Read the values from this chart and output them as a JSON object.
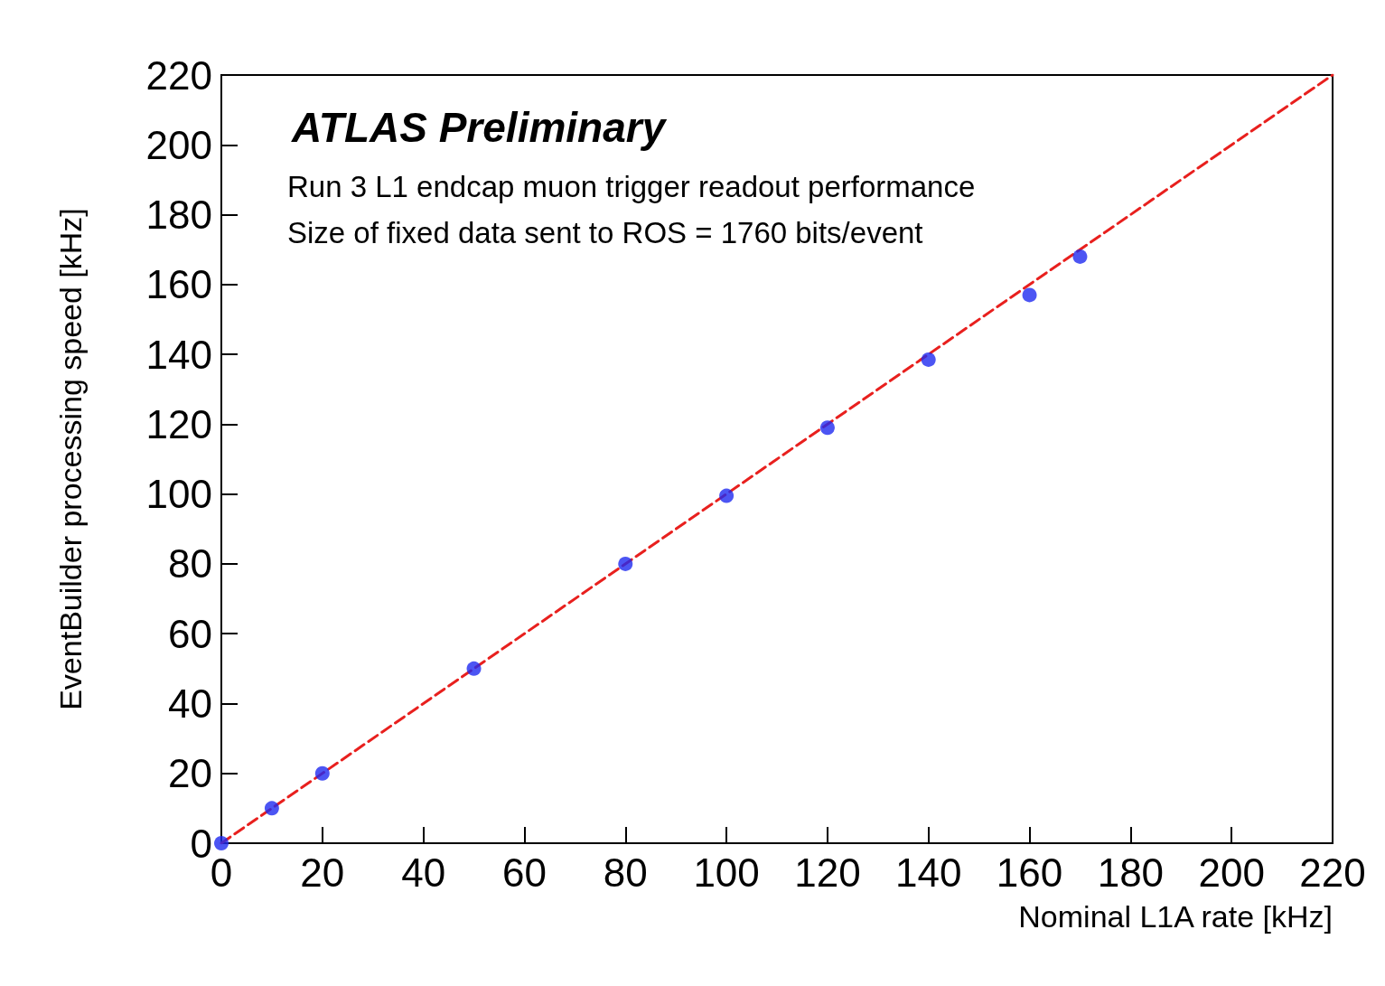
{
  "chart_data": {
    "type": "scatter",
    "title": "ATLAS Preliminary",
    "xlabel": "Nominal L1A rate [kHz]",
    "ylabel": "EventBuilder processing speed [kHz]",
    "annotations": [
      "Run 3 L1 endcap muon trigger readout performance",
      "Size of fixed data sent to ROS = 1760 bits/event"
    ],
    "series": [
      {
        "color": "#1f2bf0",
        "x": [
          0,
          10,
          20,
          50,
          80,
          100,
          120,
          140,
          160,
          170
        ],
        "values": [
          0,
          10,
          20,
          50,
          80,
          99.5,
          119,
          138.5,
          157,
          168
        ]
      },
      {
        "type": "line",
        "color": "#e8201e",
        "line_style": "dashed",
        "marker": "none",
        "x": [
          0,
          220
        ],
        "values": [
          0,
          220
        ]
      }
    ],
    "marker": "circle",
    "xlim": [
      0,
      220
    ],
    "ylim": [
      0,
      220
    ],
    "xticks": [
      0,
      20,
      40,
      60,
      80,
      100,
      120,
      140,
      160,
      180,
      200,
      220
    ],
    "yticks": [
      0,
      20,
      40,
      60,
      80,
      100,
      120,
      140,
      160,
      180,
      200,
      220
    ],
    "grid": false
  }
}
